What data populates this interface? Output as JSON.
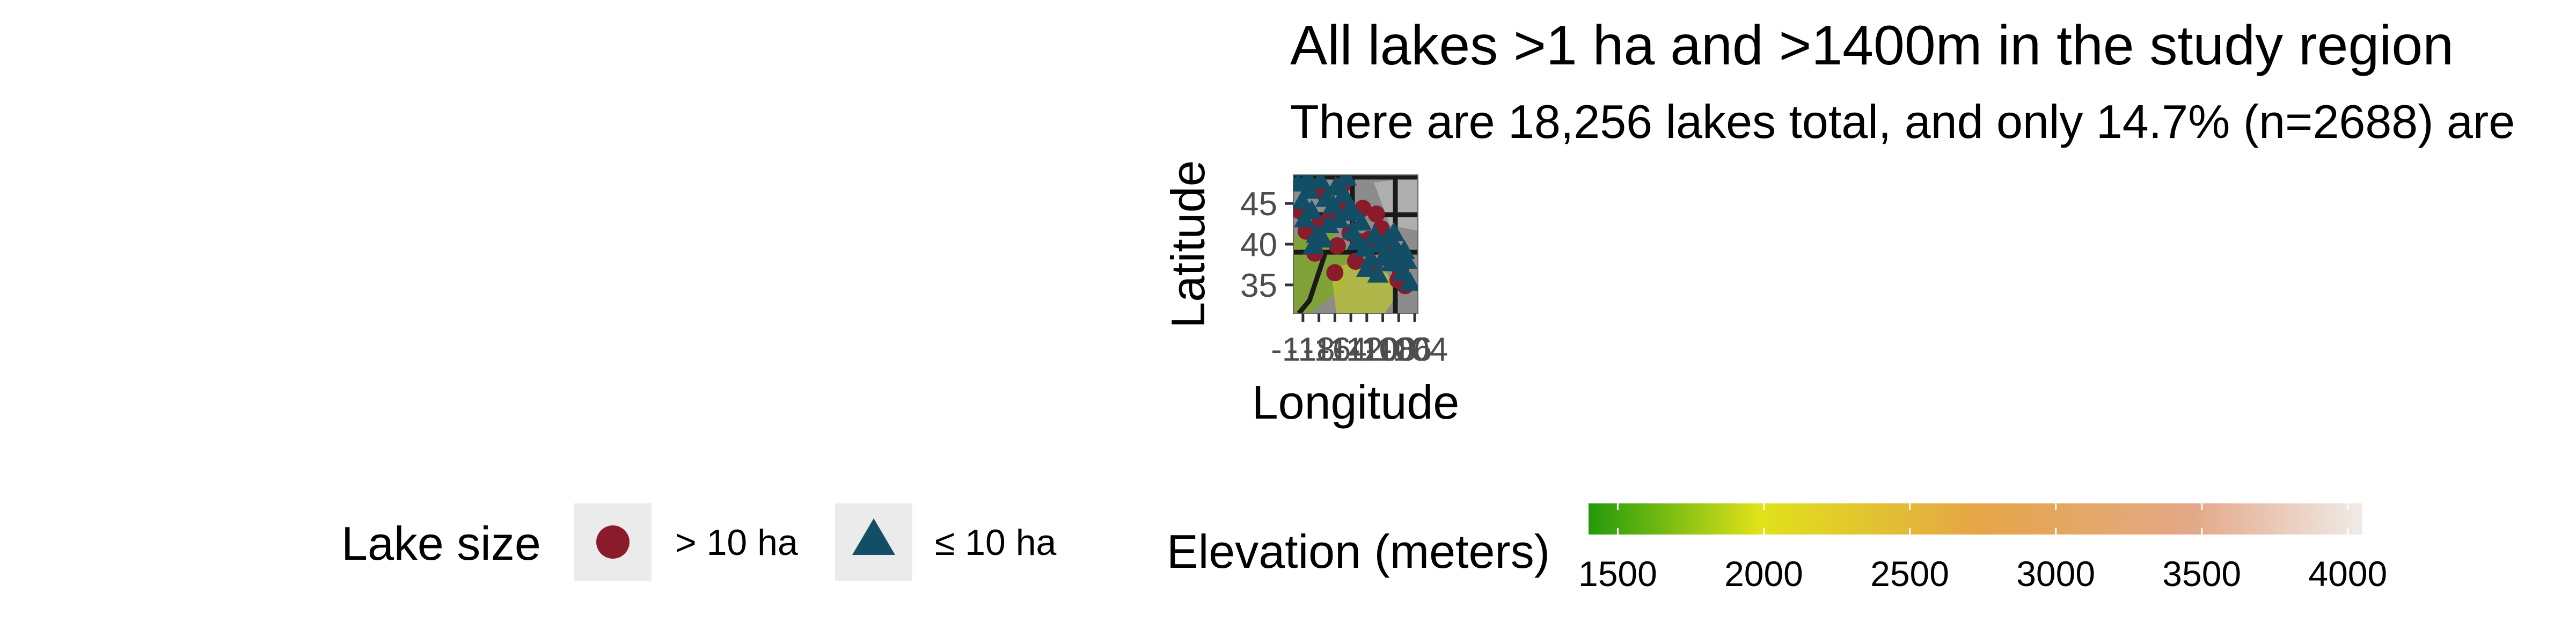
{
  "chart_data": {
    "type": "scatter",
    "title": "All lakes >1 ha and >1400m in the study region",
    "subtitle": "There are 18,256 lakes total, and only 14.7% (n=2688) are",
    "xlabel": "Longitude",
    "ylabel": "Latitude",
    "x_tick_labels": [
      "-118",
      "-116",
      "-114",
      "-112",
      "-110",
      "-108",
      "-106",
      "-104"
    ],
    "x_ticks": [
      -118,
      -116,
      -114,
      -112,
      -110,
      -108,
      -106,
      -104
    ],
    "y_tick_labels": [
      "35",
      "40",
      "45"
    ],
    "y_ticks": [
      35,
      40,
      45
    ],
    "xlim": [
      -119.2,
      -103.6
    ],
    "ylim": [
      31.5,
      48.5
    ],
    "grid": false,
    "legend_position": "bottom",
    "series": [
      {
        "name": "> 10 ha",
        "shape": "circle",
        "color": "#8b1a2b",
        "x": [
          -118.4,
          -117.6,
          -116.5,
          -115.4,
          -114.6,
          -113.7,
          -112.8,
          -112.1,
          -111.4,
          -110.5,
          -109.7,
          -108.8,
          -107.6,
          -106.7,
          -105.8,
          -105.2,
          -115.9,
          -113.1,
          -110.9,
          -108.2,
          -106.1,
          -117.0,
          -114.0,
          -109.1
        ],
        "y": [
          44.1,
          41.6,
          38.9,
          46.3,
          43.2,
          39.8,
          45.1,
          41.4,
          37.9,
          44.4,
          40.6,
          43.7,
          39.2,
          38.6,
          36.8,
          34.9,
          42.5,
          47.2,
          40.3,
          41.9,
          35.6,
          46.8,
          36.5,
          37.3
        ]
      },
      {
        "name": "≤ 10 ha",
        "shape": "triangle",
        "color": "#124e66",
        "x": [
          -118.6,
          -118.1,
          -117.8,
          -117.2,
          -116.9,
          -116.3,
          -115.8,
          -115.1,
          -114.8,
          -114.2,
          -113.5,
          -112.9,
          -112.4,
          -111.8,
          -111.2,
          -110.7,
          -110.2,
          -109.5,
          -109.0,
          -108.4,
          -107.9,
          -107.3,
          -106.9,
          -106.4,
          -105.9,
          -105.5,
          -105.0,
          -104.6,
          -117.4,
          -115.5,
          -113.9,
          -111.9,
          -110.0,
          -108.6,
          -106.6,
          -105.3,
          -116.7,
          -112.6
        ],
        "y": [
          47.4,
          45.2,
          43.0,
          46.5,
          44.0,
          41.1,
          47.7,
          45.5,
          42.3,
          44.7,
          42.9,
          46.0,
          43.8,
          41.5,
          40.2,
          42.6,
          39.4,
          38.1,
          41.0,
          39.9,
          38.3,
          40.7,
          37.6,
          39.5,
          38.7,
          36.4,
          37.9,
          35.2,
          48.0,
          40.5,
          46.9,
          44.2,
          36.9,
          36.2,
          41.3,
          39.1,
          39.7,
          48.1
        ]
      }
    ],
    "legend": {
      "size_title": "Lake size",
      "size_items": [
        {
          "label": "> 10 ha",
          "shape": "circle",
          "color": "#8b1a2b"
        },
        {
          "label": "≤ 10 ha",
          "shape": "triangle",
          "color": "#124e66"
        }
      ],
      "elevation_title": "Elevation (meters)",
      "elevation_ticks": [
        1500,
        2000,
        2500,
        3000,
        3500,
        4000
      ],
      "elevation_tick_labels": [
        "1500",
        "2000",
        "2500",
        "3000",
        "3500",
        "4000"
      ],
      "elevation_range": [
        1400,
        4050
      ],
      "elevation_colors": [
        "#229a0b",
        "#e0e21a",
        "#e5a646",
        "#e3a888",
        "#f0ebe8"
      ]
    }
  }
}
